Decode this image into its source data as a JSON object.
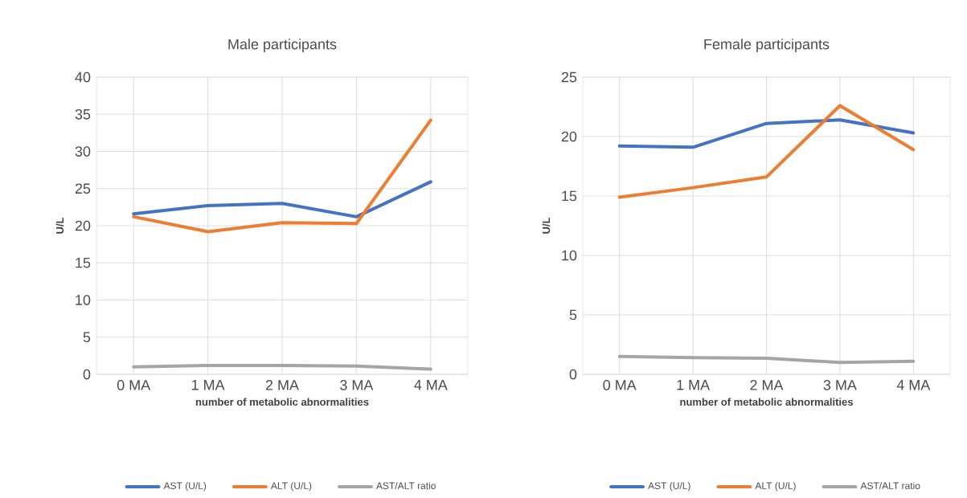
{
  "chart_data": [
    {
      "type": "line",
      "title": "Male participants",
      "xlabel": "number of metabolic abnormalities",
      "ylabel": "U/L",
      "categories": [
        "0 MA",
        "1 MA",
        "2 MA",
        "3 MA",
        "4 MA"
      ],
      "series": [
        {
          "name": "AST (U/L)",
          "color": "#4472c4",
          "values": [
            21.6,
            22.7,
            23.0,
            21.2,
            25.9
          ]
        },
        {
          "name": "ALT (U/L)",
          "color": "#ed7d31",
          "values": [
            21.2,
            19.2,
            20.4,
            20.3,
            34.2
          ]
        },
        {
          "name": "AST/ALT ratio",
          "color": "#a5a5a5",
          "values": [
            1.0,
            1.2,
            1.2,
            1.1,
            0.7
          ]
        }
      ],
      "ylim": [
        0,
        40
      ],
      "yticks": [
        0,
        5,
        10,
        15,
        20,
        25,
        30,
        35,
        40
      ],
      "grid": true,
      "legend": "bottom",
      "marker": "none"
    },
    {
      "type": "line",
      "title": "Female participants",
      "xlabel": "number of metabolic abnormalities",
      "ylabel": "U/L",
      "categories": [
        "0 MA",
        "1 MA",
        "2 MA",
        "3 MA",
        "4 MA"
      ],
      "series": [
        {
          "name": "AST (U/L)",
          "color": "#4472c4",
          "values": [
            19.2,
            19.1,
            21.1,
            21.4,
            20.3
          ]
        },
        {
          "name": "ALT (U/L)",
          "color": "#ed7d31",
          "values": [
            14.9,
            15.7,
            16.6,
            22.6,
            18.9
          ]
        },
        {
          "name": "AST/ALT ratio",
          "color": "#a5a5a5",
          "values": [
            1.5,
            1.4,
            1.35,
            1.0,
            1.1
          ]
        }
      ],
      "ylim": [
        0,
        25
      ],
      "yticks": [
        0,
        5,
        10,
        15,
        20,
        25
      ],
      "grid": true,
      "legend": "bottom",
      "marker": "none"
    }
  ]
}
